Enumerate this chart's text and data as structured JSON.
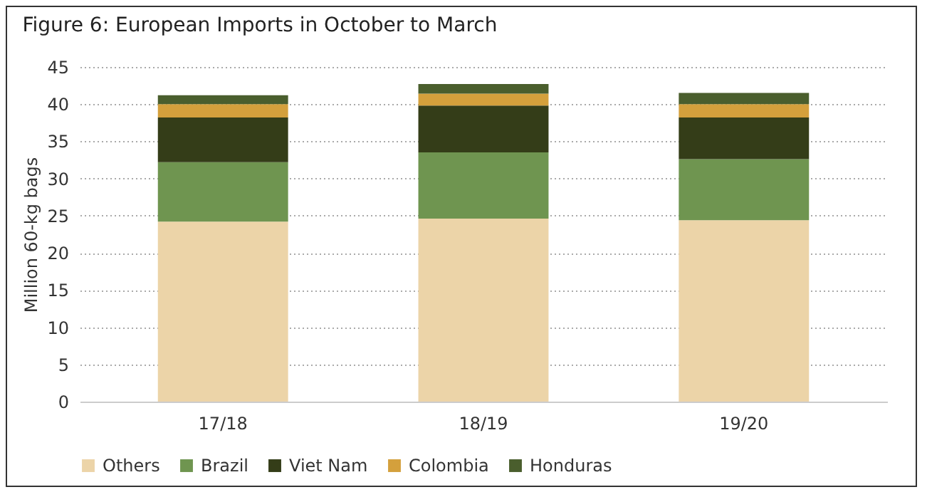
{
  "chart_data": {
    "type": "bar",
    "title": "Figure 6: European Imports in October to March",
    "ylabel": "Million 60-kg bags",
    "categories": [
      "17/18",
      "18/19",
      "19/20"
    ],
    "stacked": true,
    "series": [
      {
        "name": "Others",
        "color": "#ecd4a8",
        "values": [
          24.2,
          24.6,
          24.4
        ]
      },
      {
        "name": "Brazil",
        "color": "#6f9550",
        "values": [
          8.0,
          8.9,
          8.2
        ]
      },
      {
        "name": "Viet Nam",
        "color": "#343d18",
        "values": [
          6.0,
          6.3,
          5.6
        ]
      },
      {
        "name": "Colombia",
        "color": "#d4a03c",
        "values": [
          1.8,
          1.6,
          1.8
        ]
      },
      {
        "name": "Honduras",
        "color": "#4a5e2d",
        "values": [
          1.2,
          1.3,
          1.5
        ]
      }
    ],
    "ylim": [
      0,
      45
    ],
    "yticks": [
      0,
      5,
      10,
      15,
      20,
      25,
      30,
      35,
      40,
      45
    ],
    "grid": "y",
    "legend": "bottom"
  }
}
